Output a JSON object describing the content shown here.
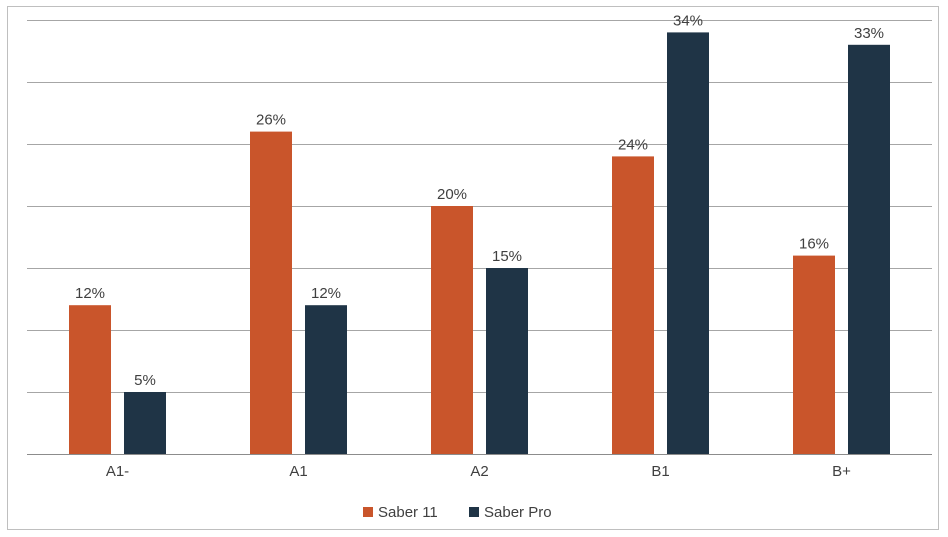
{
  "chart_data": {
    "type": "bar",
    "categories": [
      "A1-",
      "A1",
      "A2",
      "B1",
      "B+"
    ],
    "series": [
      {
        "name": "Saber 11",
        "values": [
          12,
          26,
          20,
          24,
          16
        ],
        "labels": [
          "12%",
          "26%",
          "20%",
          "24%",
          "16%"
        ],
        "color": "#c9552b"
      },
      {
        "name": "Saber Pro",
        "values": [
          5,
          12,
          15,
          34,
          33
        ],
        "labels": [
          "5%",
          "12%",
          "15%",
          "34%",
          "33%"
        ],
        "color": "#1f3446"
      }
    ],
    "ylim": [
      0,
      35
    ],
    "grid": true,
    "legend": "bottom-center"
  }
}
